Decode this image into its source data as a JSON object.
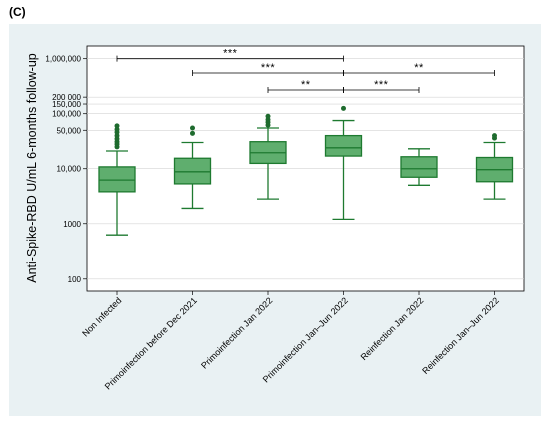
{
  "panel_label": "(C)",
  "colors": {
    "box_fill": "#5fae6e",
    "box_stroke": "#1e7a30",
    "outlier": "#1e6b2e",
    "background": "#e9f1f3"
  },
  "chart_data": {
    "type": "box",
    "ylabel": "Anti-Spike-RBD U/mL 6-months follow-up",
    "yscale": "log",
    "ylim": [
      60,
      1700000
    ],
    "yticks": [
      {
        "value": 100,
        "label": "100"
      },
      {
        "value": 1000,
        "label": "1000"
      },
      {
        "value": 10000,
        "label": "10,000"
      },
      {
        "value": 50000,
        "label": "50,000"
      },
      {
        "value": 100000,
        "label": "100,000"
      },
      {
        "value": 150000,
        "label": "150,000"
      },
      {
        "value": 200000,
        "label": "200 000"
      },
      {
        "value": 1000000,
        "label": "1,000,000"
      }
    ],
    "categories": [
      "Non Infected",
      "Primoinfection before Dec 2021",
      "Primoinfection Jan 2022",
      "Primoinfection Jan–Jun 2022",
      "Reinfection Jan 2022",
      "Reinfection Jan–Jun 2022"
    ],
    "boxes": [
      {
        "whisker_low": 620,
        "q1": 3800,
        "median": 6200,
        "q3": 10800,
        "whisker_high": 21000,
        "outliers": [
          25000,
          28000,
          31000,
          35000,
          40000,
          46000,
          52000,
          60000
        ]
      },
      {
        "whisker_low": 1900,
        "q1": 5300,
        "median": 8800,
        "q3": 15500,
        "whisker_high": 30000,
        "outliers": [
          44000,
          55000
        ]
      },
      {
        "whisker_low": 2800,
        "q1": 12500,
        "median": 19500,
        "q3": 31000,
        "whisker_high": 55000,
        "outliers": [
          62000,
          70000,
          78000,
          90000
        ]
      },
      {
        "whisker_low": 1200,
        "q1": 17000,
        "median": 24000,
        "q3": 40000,
        "whisker_high": 75000,
        "outliers": [
          125000
        ]
      },
      {
        "whisker_low": 5000,
        "q1": 7000,
        "median": 10000,
        "q3": 16500,
        "whisker_high": 23000,
        "outliers": []
      },
      {
        "whisker_low": 2800,
        "q1": 5800,
        "median": 9600,
        "q3": 16000,
        "whisker_high": 30000,
        "outliers": [
          36000,
          40000
        ]
      }
    ],
    "significance": [
      {
        "from": 0,
        "to": 3,
        "y": 1000000,
        "label": "***"
      },
      {
        "from": 1,
        "to": 3,
        "y": 550000,
        "label": "***"
      },
      {
        "from": 3,
        "to": 5,
        "y": 550000,
        "label": "**"
      },
      {
        "from": 2,
        "to": 3,
        "y": 270000,
        "label": "**"
      },
      {
        "from": 3,
        "to": 4,
        "y": 270000,
        "label": "***"
      }
    ]
  }
}
